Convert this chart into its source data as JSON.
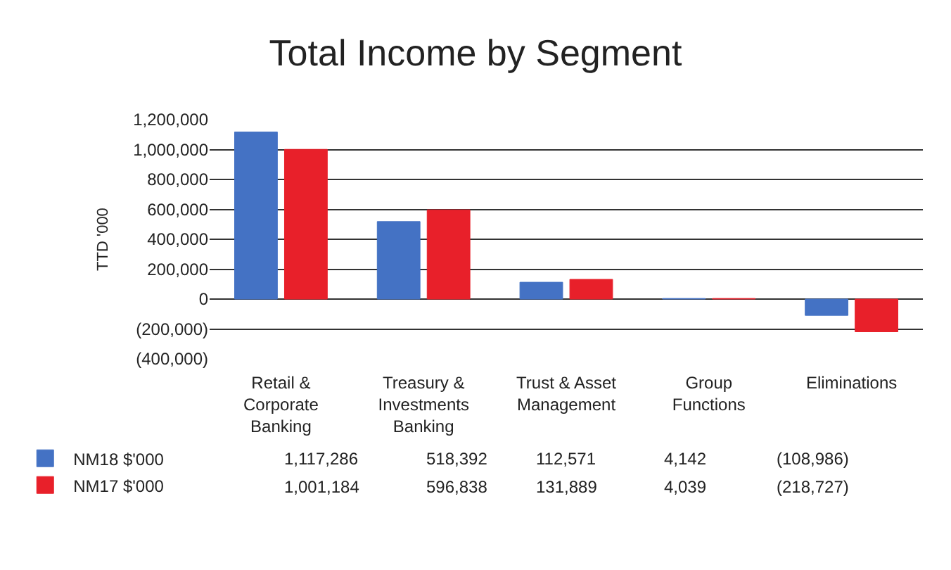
{
  "chart_data": {
    "type": "bar",
    "title": "Total Income by Segment",
    "ylabel": "TTD '000",
    "categories": [
      "Retail & Corporate Banking",
      "Treasury & Investments Banking",
      "Trust & Asset Management",
      "Group Functions",
      "Eliminations"
    ],
    "series": [
      {
        "name": "NM18 $'000",
        "color": "#4472c4",
        "values": [
          1117286,
          518392,
          112571,
          4142,
          -108986
        ],
        "value_labels": [
          "1,117,286",
          "518,392",
          "112,571",
          "4,142",
          "(108,986)"
        ]
      },
      {
        "name": "NM17 $'000",
        "color": "#e8202a",
        "values": [
          1001184,
          596838,
          131889,
          4039,
          -218727
        ],
        "value_labels": [
          "1,001,184",
          "596,838",
          "131,889",
          "4,039",
          "(218,727)"
        ]
      }
    ],
    "ylim": [
      -400000,
      1200000
    ],
    "yticks": [
      {
        "value": -400000,
        "label": "(400,000)"
      },
      {
        "value": -200000,
        "label": "(200,000)"
      },
      0,
      {
        "value": 200000,
        "label": "200,000"
      },
      {
        "value": 400000,
        "label": "400,000"
      },
      {
        "value": 600000,
        "label": "600,000"
      },
      {
        "value": 800000,
        "label": "800,000"
      },
      {
        "value": 1000000,
        "label": "1,000,000"
      },
      {
        "value": 1200000,
        "label": "1,200,000"
      }
    ],
    "grid": "y",
    "legend": "bottom left"
  }
}
